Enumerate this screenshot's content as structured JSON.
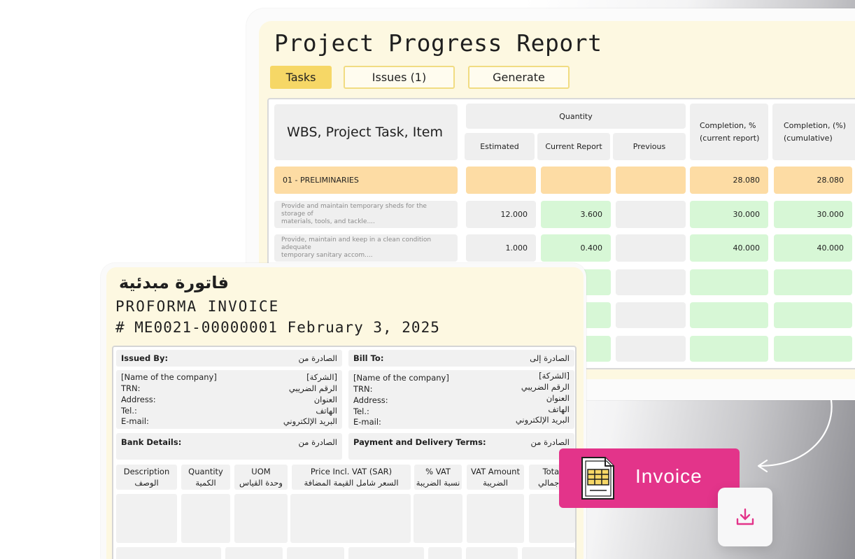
{
  "report": {
    "title": "Project Progress Report",
    "tabs": [
      {
        "label": "Tasks",
        "active": true
      },
      {
        "label": "Issues (1)",
        "active": false
      },
      {
        "label": "Generate",
        "active": false
      }
    ],
    "table": {
      "header": {
        "item": "WBS, Project Task, Item",
        "quantity": "Quantity",
        "estimated": "Estimated",
        "current_report": "Current Report",
        "previous": "Previous",
        "completion_current_l1": "Completion, %",
        "completion_current_l2": "(current report)",
        "completion_cum_l1": "Completion, (%)",
        "completion_cum_l2": "(cumulative)"
      },
      "section": {
        "name": "01 - PRELIMINARIES",
        "completion_current": "28.080",
        "completion_cumulative": "28.080"
      },
      "rows": [
        {
          "desc_l1": "Provide and maintain temporary sheds for the storage of",
          "desc_l2": "materials, tools, and tackle....",
          "estimated": "12.000",
          "current": "3.600",
          "previous": "",
          "completion_current": "30.000",
          "completion_cumulative": "30.000"
        },
        {
          "desc_l1": "Provide, maintain and keep in a clean condition adequate",
          "desc_l2": "temporary sanitary accom....",
          "estimated": "1.000",
          "current": "0.400",
          "previous": "",
          "completion_current": "40.000",
          "completion_cumulative": "40.000"
        }
      ]
    }
  },
  "invoice": {
    "title_ar": "فاتورة مبدئية",
    "title_en": "PROFORMA INVOICE",
    "number_line": "# ME0021-00000001 February 3, 2025",
    "issued_by": {
      "label": "Issued By:",
      "label_ar": "الصادرة من"
    },
    "bill_to": {
      "label": "Bill To:",
      "label_ar": "الصادرة إلى"
    },
    "fields": {
      "company": "[Name of the company]",
      "company_ar": "[الشركة]",
      "trn": "TRN:",
      "trn_ar": "الرقم الضريبي",
      "address": "Address:",
      "address_ar": "العنوان",
      "tel": "Tel.:",
      "tel_ar": "الهاتف",
      "email": "E-mail:",
      "email_ar": "البريد الإلكتروني"
    },
    "bank_details": {
      "label": "Bank Details:",
      "label_ar": "الصادرة من"
    },
    "payment_terms": {
      "label": "Payment and Delivery Terms:",
      "label_ar": "الصادرة من"
    },
    "columns": [
      {
        "en": "Description",
        "ar": "الوصف"
      },
      {
        "en": "Quantity",
        "ar": "الكمية"
      },
      {
        "en": "UOM",
        "ar": "وحدة القياس"
      },
      {
        "en": "Price Incl. VAT (SAR)",
        "ar": "السعر شامل القيمة المضافة"
      },
      {
        "en": "% VAT",
        "ar": "نسبة الضريبة"
      },
      {
        "en": "VAT Amount",
        "ar": "الضريبة"
      },
      {
        "en": "Total",
        "ar": "الإجمالي"
      }
    ]
  },
  "badge": {
    "label": "Invoice",
    "icon": "invoice-document-icon",
    "color": "#e3348a"
  },
  "download": {
    "icon": "download-icon",
    "color": "#e3348a"
  }
}
